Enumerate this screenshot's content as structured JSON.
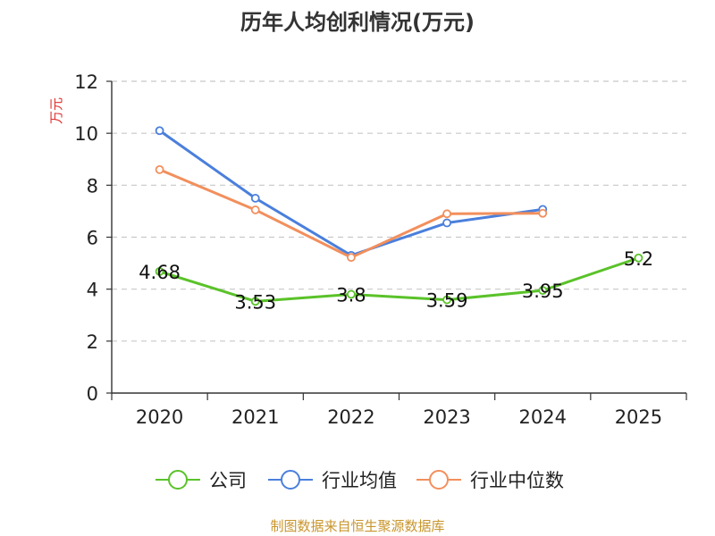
{
  "chart_data": {
    "type": "line",
    "title": "历年人均创利情况(万元)",
    "ylabel": "万元",
    "xlabel": "",
    "categories": [
      "2020",
      "2021",
      "2022",
      "2023",
      "2024",
      "2025"
    ],
    "ylim": [
      0,
      12
    ],
    "yticks": [
      0,
      2,
      4,
      6,
      8,
      10,
      12
    ],
    "grid": true,
    "legend_position": "bottom",
    "series": [
      {
        "name": "公司",
        "color": "#5ac229",
        "values": [
          4.68,
          3.53,
          3.8,
          3.59,
          3.95,
          5.2
        ],
        "labels": [
          "4.68",
          "3.53",
          "3.8",
          "3.59",
          "3.95",
          "5.2"
        ]
      },
      {
        "name": "行业均值",
        "color": "#4a7fdc",
        "values": [
          10.1,
          7.5,
          5.3,
          6.55,
          7.07,
          null
        ]
      },
      {
        "name": "行业中位数",
        "color": "#f28f5c",
        "values": [
          8.6,
          7.05,
          5.22,
          6.9,
          6.92,
          null
        ]
      }
    ]
  },
  "footer": {
    "source": "制图数据来自恒生聚源数据库"
  },
  "colors": {
    "axis": "#333333",
    "grid": "#c8c8c8",
    "ylabel": "#e03030",
    "title": "#333333",
    "source": "#c8952c"
  }
}
